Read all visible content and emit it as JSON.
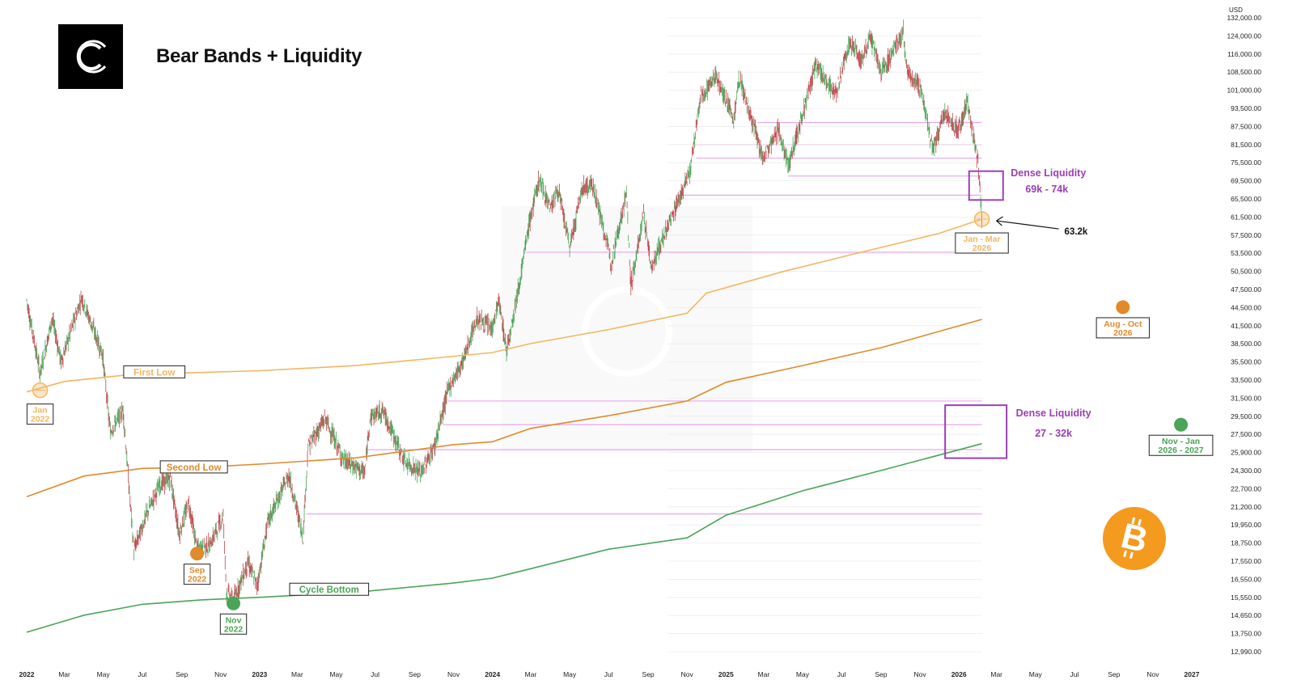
{
  "title": "Bear Bands + Liquidity",
  "currency": "USD",
  "colors": {
    "first_low": "#f2b661",
    "second_low": "#e08a2a",
    "cycle_bottom": "#4aa556",
    "liquidity": "#9b3fb5",
    "liquidity_line": "#e7a7ea",
    "candle_up": "#4ca65a",
    "candle_down": "#c3424a",
    "btc_orange": "#f39a1f"
  },
  "chart_data": {
    "type": "line",
    "y_scale": "log",
    "x_range": [
      "2022-01-01",
      "2027-01-01"
    ],
    "y_ticks": [
      "132,000.00",
      "124,000.00",
      "116,000.00",
      "108,500.00",
      "101,000.00",
      "93,500.00",
      "87,500.00",
      "81,500.00",
      "75,500.00",
      "69,500.00",
      "65,500.00",
      "61,500.00",
      "57,500.00",
      "53,500.00",
      "50,500.00",
      "47,500.00",
      "44,500.00",
      "41,500.00",
      "38,500.00",
      "35,500.00",
      "33,500.00",
      "31,500.00",
      "29,500.00",
      "27,500.00",
      "25,900.00",
      "24,300.00",
      "22,700.00",
      "21,200.00",
      "19,950.00",
      "18,750.00",
      "17,550.00",
      "16,550.00",
      "15,550.00",
      "14,650.00",
      "13,750.00",
      "12,990.00"
    ],
    "x_ticks": [
      {
        "label": "2022",
        "date": "2022-01-01",
        "bold": true
      },
      {
        "label": "Mar",
        "date": "2022-03-01"
      },
      {
        "label": "May",
        "date": "2022-05-01"
      },
      {
        "label": "Jul",
        "date": "2022-07-01"
      },
      {
        "label": "Sep",
        "date": "2022-09-01"
      },
      {
        "label": "Nov",
        "date": "2022-11-01"
      },
      {
        "label": "2023",
        "date": "2023-01-01",
        "bold": true
      },
      {
        "label": "Mar",
        "date": "2023-03-01"
      },
      {
        "label": "May",
        "date": "2023-05-01"
      },
      {
        "label": "Jul",
        "date": "2023-07-01"
      },
      {
        "label": "Sep",
        "date": "2023-09-01"
      },
      {
        "label": "Nov",
        "date": "2023-11-01"
      },
      {
        "label": "2024",
        "date": "2024-01-01",
        "bold": true
      },
      {
        "label": "Mar",
        "date": "2024-03-01"
      },
      {
        "label": "May",
        "date": "2024-05-01"
      },
      {
        "label": "Jul",
        "date": "2024-07-01"
      },
      {
        "label": "Sep",
        "date": "2024-09-01"
      },
      {
        "label": "Nov",
        "date": "2024-11-01"
      },
      {
        "label": "2025",
        "date": "2025-01-01",
        "bold": true
      },
      {
        "label": "Mar",
        "date": "2025-03-01"
      },
      {
        "label": "May",
        "date": "2025-05-01"
      },
      {
        "label": "Jul",
        "date": "2025-07-01"
      },
      {
        "label": "Sep",
        "date": "2025-09-01"
      },
      {
        "label": "Nov",
        "date": "2025-11-01"
      },
      {
        "label": "2026",
        "date": "2026-01-01",
        "bold": true
      },
      {
        "label": "Mar",
        "date": "2026-03-01"
      },
      {
        "label": "May",
        "date": "2026-05-01"
      },
      {
        "label": "Jul",
        "date": "2026-07-01"
      },
      {
        "label": "Sep",
        "date": "2026-09-01"
      },
      {
        "label": "Nov",
        "date": "2026-11-01"
      },
      {
        "label": "2027",
        "date": "2027-01-01",
        "bold": true
      }
    ],
    "price_path": [
      [
        "2022-01-01",
        47000
      ],
      [
        "2022-01-22",
        36000
      ],
      [
        "2022-02-10",
        44000
      ],
      [
        "2022-02-24",
        37500
      ],
      [
        "2022-03-28",
        47500
      ],
      [
        "2022-04-30",
        38500
      ],
      [
        "2022-05-12",
        29000
      ],
      [
        "2022-06-01",
        31500
      ],
      [
        "2022-06-18",
        18800
      ],
      [
        "2022-07-08",
        21500
      ],
      [
        "2022-07-29",
        24000
      ],
      [
        "2022-08-14",
        24500
      ],
      [
        "2022-08-28",
        20000
      ],
      [
        "2022-09-12",
        22400
      ],
      [
        "2022-09-25",
        18900
      ],
      [
        "2022-10-15",
        19200
      ],
      [
        "2022-11-05",
        21400
      ],
      [
        "2022-11-10",
        16200
      ],
      [
        "2022-11-21",
        15700
      ],
      [
        "2022-12-14",
        18000
      ],
      [
        "2022-12-28",
        16500
      ],
      [
        "2023-01-14",
        20900
      ],
      [
        "2023-02-16",
        24800
      ],
      [
        "2023-03-10",
        19800
      ],
      [
        "2023-03-18",
        27500
      ],
      [
        "2023-04-14",
        30500
      ],
      [
        "2023-05-12",
        26200
      ],
      [
        "2023-06-15",
        25000
      ],
      [
        "2023-06-23",
        30600
      ],
      [
        "2023-07-13",
        31400
      ],
      [
        "2023-08-17",
        26000
      ],
      [
        "2023-09-11",
        25000
      ],
      [
        "2023-10-02",
        27500
      ],
      [
        "2023-10-24",
        34000
      ],
      [
        "2023-11-15",
        37500
      ],
      [
        "2023-12-08",
        44000
      ],
      [
        "2023-12-31",
        42300
      ],
      [
        "2024-01-11",
        46800
      ],
      [
        "2024-01-23",
        39000
      ],
      [
        "2024-02-15",
        52000
      ],
      [
        "2024-02-28",
        62500
      ],
      [
        "2024-03-14",
        73000
      ],
      [
        "2024-04-01",
        66000
      ],
      [
        "2024-04-13",
        70500
      ],
      [
        "2024-05-01",
        57000
      ],
      [
        "2024-05-21",
        71000
      ],
      [
        "2024-06-07",
        71500
      ],
      [
        "2024-07-05",
        54000
      ],
      [
        "2024-07-29",
        69500
      ],
      [
        "2024-08-05",
        49500
      ],
      [
        "2024-08-25",
        64500
      ],
      [
        "2024-09-06",
        53000
      ],
      [
        "2024-10-14",
        66000
      ],
      [
        "2024-11-06",
        75500
      ],
      [
        "2024-11-22",
        98500
      ],
      [
        "2024-12-17",
        107000
      ],
      [
        "2025-01-13",
        91000
      ],
      [
        "2025-01-22",
        106000
      ],
      [
        "2025-02-28",
        79000
      ],
      [
        "2025-03-25",
        88000
      ],
      [
        "2025-04-08",
        76500
      ],
      [
        "2025-05-22",
        111000
      ],
      [
        "2025-06-22",
        100000
      ],
      [
        "2025-07-14",
        121000
      ],
      [
        "2025-08-02",
        113000
      ],
      [
        "2025-08-14",
        123500
      ],
      [
        "2025-09-01",
        108000
      ],
      [
        "2025-10-06",
        125000
      ],
      [
        "2025-10-11",
        109000
      ],
      [
        "2025-11-04",
        101000
      ],
      [
        "2025-11-21",
        81000
      ],
      [
        "2025-12-10",
        93000
      ],
      [
        "2025-12-31",
        87500
      ],
      [
        "2026-01-14",
        97000
      ],
      [
        "2026-01-31",
        78000
      ],
      [
        "2026-02-06",
        63500
      ]
    ],
    "bands": [
      {
        "name": "First Low",
        "color_key": "first_low",
        "points": [
          [
            "2022-01-01",
            33600
          ],
          [
            "2022-03-01",
            34900
          ],
          [
            "2022-06-01",
            35700
          ],
          [
            "2022-09-01",
            36000
          ],
          [
            "2023-01-01",
            36300
          ],
          [
            "2023-06-01",
            37000
          ],
          [
            "2023-10-01",
            38000
          ],
          [
            "2024-01-01",
            38800
          ],
          [
            "2024-03-01",
            40100
          ],
          [
            "2024-07-01",
            42200
          ],
          [
            "2024-11-01",
            44800
          ],
          [
            "2024-12-01",
            48200
          ],
          [
            "2025-04-01",
            52200
          ],
          [
            "2025-08-01",
            56000
          ],
          [
            "2025-12-01",
            60000
          ],
          [
            "2026-02-06",
            63200
          ]
        ]
      },
      {
        "name": "Second Low",
        "color_key": "second_low",
        "points": [
          [
            "2022-01-01",
            22900
          ],
          [
            "2022-04-01",
            24700
          ],
          [
            "2022-07-01",
            25400
          ],
          [
            "2022-10-01",
            25500
          ],
          [
            "2023-01-01",
            25800
          ],
          [
            "2023-06-01",
            26400
          ],
          [
            "2023-11-01",
            27700
          ],
          [
            "2024-01-01",
            28000
          ],
          [
            "2024-03-01",
            29400
          ],
          [
            "2024-07-01",
            30800
          ],
          [
            "2024-11-01",
            32500
          ],
          [
            "2025-01-01",
            34800
          ],
          [
            "2025-05-01",
            37000
          ],
          [
            "2025-09-01",
            39500
          ],
          [
            "2026-02-06",
            43800
          ]
        ]
      },
      {
        "name": "Cycle Bottom",
        "color_key": "cycle_bottom",
        "points": [
          [
            "2022-01-01",
            13950
          ],
          [
            "2022-04-01",
            14850
          ],
          [
            "2022-07-01",
            15450
          ],
          [
            "2022-10-01",
            15700
          ],
          [
            "2023-01-01",
            15850
          ],
          [
            "2023-06-01",
            16150
          ],
          [
            "2023-11-01",
            16700
          ],
          [
            "2024-01-01",
            17000
          ],
          [
            "2024-03-01",
            17600
          ],
          [
            "2024-07-01",
            18900
          ],
          [
            "2024-11-01",
            19700
          ],
          [
            "2025-01-01",
            21400
          ],
          [
            "2025-05-01",
            23400
          ],
          [
            "2025-09-01",
            25200
          ],
          [
            "2026-02-06",
            27800
          ]
        ]
      }
    ],
    "band_labels": [
      {
        "text": "First Low",
        "date": "2022-07-20",
        "value": 36100,
        "color_key": "first_low"
      },
      {
        "text": "Second Low",
        "date": "2022-09-20",
        "value": 25500,
        "color_key": "second_low"
      },
      {
        "text": "Cycle Bottom",
        "date": "2023-04-20",
        "value": 16300,
        "color_key": "cycle_bottom"
      }
    ],
    "events": [
      {
        "line1": "Jan",
        "line2": "2022",
        "date": "2022-01-22",
        "value": 33800,
        "style": "ring",
        "color_key": "first_low"
      },
      {
        "line1": "Sep",
        "line2": "2022",
        "date": "2022-09-25",
        "value": 18600,
        "style": "filled",
        "color_key": "second_low"
      },
      {
        "line1": "Nov",
        "line2": "2022",
        "date": "2022-11-21",
        "value": 15500,
        "style": "filled",
        "color_key": "cycle_bottom"
      },
      {
        "line1": "Jan - Mar",
        "line2": "2026",
        "date": "2026-02-06",
        "value": 63200,
        "style": "ring",
        "color_key": "first_low"
      },
      {
        "line1": "Aug - Oct",
        "line2": "2026",
        "date": "2026-09-15",
        "value": 45800,
        "style": "filled",
        "color_key": "second_low"
      },
      {
        "line1": "Nov - Jan",
        "line2": "2026 - 2027",
        "date": "2026-12-15",
        "value": 29800,
        "style": "filled",
        "color_key": "cycle_bottom"
      }
    ],
    "liquidity_zones": [
      {
        "title": "Dense Liquidity",
        "range": "69k - 74k",
        "low": 69000,
        "high": 74000
      },
      {
        "title": "Dense Liquidity",
        "range": "27 - 32k",
        "low": 27000,
        "high": 32000
      }
    ],
    "liquidity_levels": [
      {
        "value": 74000,
        "from": "2025-04-08"
      },
      {
        "value": 69000,
        "from": "2024-10-14"
      },
      {
        "value": 79000,
        "from": "2024-11-15"
      },
      {
        "value": 83000,
        "from": "2024-11-12"
      },
      {
        "value": 90000,
        "from": "2025-02-20"
      },
      {
        "value": 56000,
        "from": "2024-02-22"
      },
      {
        "value": 32500,
        "from": "2023-10-23"
      },
      {
        "value": 29800,
        "from": "2023-10-16"
      },
      {
        "value": 27200,
        "from": "2023-06-20"
      },
      {
        "value": 21500,
        "from": "2023-03-15"
      }
    ],
    "annotation": {
      "text": "63.2k",
      "date": "2026-02-06",
      "value": 63200
    }
  }
}
